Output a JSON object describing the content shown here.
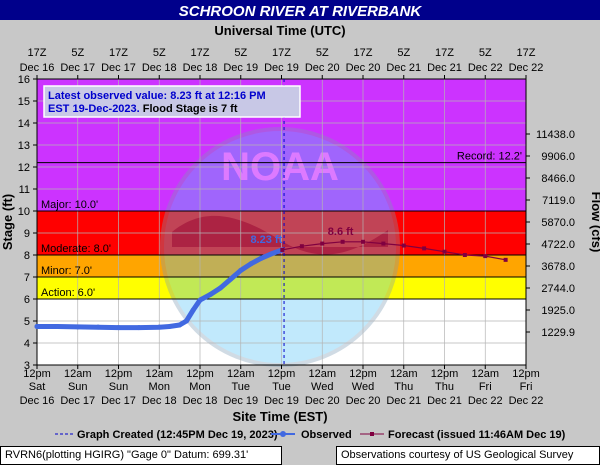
{
  "chart_data": {
    "type": "line",
    "title": "SCHROON RIVER AT RIVERBANK",
    "top_axis_title": "Universal Time (UTC)",
    "xlabel": "Site Time (EST)",
    "ylabel": "Stage (ft)",
    "y2label": "Flow (cfs)",
    "ylim": [
      3,
      16
    ],
    "xlim_hours": [
      0,
      144
    ],
    "y_ticks": [
      "3",
      "4",
      "5",
      "6",
      "7",
      "8",
      "9",
      "10",
      "11",
      "12",
      "13",
      "14",
      "15",
      "16"
    ],
    "flow_ticks": [
      {
        "stage": 4.5,
        "label": "1229.9"
      },
      {
        "stage": 5.5,
        "label": "1925.0"
      },
      {
        "stage": 6.5,
        "label": "2744.0"
      },
      {
        "stage": 7.5,
        "label": "3678.0"
      },
      {
        "stage": 8.5,
        "label": "4722.0"
      },
      {
        "stage": 9.5,
        "label": "5870.0"
      },
      {
        "stage": 10.5,
        "label": "7119.0"
      },
      {
        "stage": 11.5,
        "label": "8466.0"
      },
      {
        "stage": 12.5,
        "label": "9906.0"
      },
      {
        "stage": 13.5,
        "label": "11438.0"
      }
    ],
    "bottom_ticks": [
      {
        "h": 0,
        "l1": "12pm",
        "l2": "Sat",
        "l3": "Dec 16"
      },
      {
        "h": 12,
        "l1": "12am",
        "l2": "Sun",
        "l3": "Dec 17"
      },
      {
        "h": 24,
        "l1": "12pm",
        "l2": "Sun",
        "l3": "Dec 17"
      },
      {
        "h": 36,
        "l1": "12am",
        "l2": "Mon",
        "l3": "Dec 18"
      },
      {
        "h": 48,
        "l1": "12pm",
        "l2": "Mon",
        "l3": "Dec 18"
      },
      {
        "h": 60,
        "l1": "12am",
        "l2": "Tue",
        "l3": "Dec 19"
      },
      {
        "h": 72,
        "l1": "12pm",
        "l2": "Tue",
        "l3": "Dec 19"
      },
      {
        "h": 84,
        "l1": "12am",
        "l2": "Wed",
        "l3": "Dec 20"
      },
      {
        "h": 96,
        "l1": "12pm",
        "l2": "Wed",
        "l3": "Dec 20"
      },
      {
        "h": 108,
        "l1": "12am",
        "l2": "Thu",
        "l3": "Dec 21"
      },
      {
        "h": 120,
        "l1": "12pm",
        "l2": "Thu",
        "l3": "Dec 21"
      },
      {
        "h": 132,
        "l1": "12am",
        "l2": "Fri",
        "l3": "Dec 22"
      },
      {
        "h": 144,
        "l1": "12pm",
        "l2": "Fri",
        "l3": "Dec 22"
      }
    ],
    "top_ticks": [
      {
        "h": 0,
        "l1": "17Z",
        "l2": "Dec 16"
      },
      {
        "h": 12,
        "l1": "5Z",
        "l2": "Dec 17"
      },
      {
        "h": 24,
        "l1": "17Z",
        "l2": "Dec 17"
      },
      {
        "h": 36,
        "l1": "5Z",
        "l2": "Dec 18"
      },
      {
        "h": 48,
        "l1": "17Z",
        "l2": "Dec 18"
      },
      {
        "h": 60,
        "l1": "5Z",
        "l2": "Dec 19"
      },
      {
        "h": 72,
        "l1": "17Z",
        "l2": "Dec 19"
      },
      {
        "h": 84,
        "l1": "5Z",
        "l2": "Dec 20"
      },
      {
        "h": 96,
        "l1": "17Z",
        "l2": "Dec 20"
      },
      {
        "h": 108,
        "l1": "5Z",
        "l2": "Dec 21"
      },
      {
        "h": 120,
        "l1": "17Z",
        "l2": "Dec 21"
      },
      {
        "h": 132,
        "l1": "5Z",
        "l2": "Dec 22"
      },
      {
        "h": 144,
        "l1": "17Z",
        "l2": "Dec 22"
      }
    ],
    "bands": [
      {
        "from": 3,
        "to": 6,
        "color": "#ffffff"
      },
      {
        "from": 6,
        "to": 7,
        "color": "#ffff00"
      },
      {
        "from": 7,
        "to": 8,
        "color": "#ffa500"
      },
      {
        "from": 8,
        "to": 10,
        "color": "#ff0000"
      },
      {
        "from": 10,
        "to": 16,
        "color": "#cc33ff"
      }
    ],
    "thresholds": [
      {
        "name": "Action",
        "stage": 6.0,
        "label": "Action: 6.0'"
      },
      {
        "name": "Minor",
        "stage": 7.0,
        "label": "Minor: 7.0'"
      },
      {
        "name": "Moderate",
        "stage": 8.0,
        "label": "Moderate: 8.0'"
      },
      {
        "name": "Major",
        "stage": 10.0,
        "label": "Major: 10.0'"
      },
      {
        "name": "Record",
        "stage": 12.2,
        "label": "Record: 12.2'"
      }
    ],
    "graph_created_hour": 72.75,
    "series": [
      {
        "name": "Observed",
        "color": "#4169e1",
        "points": [
          [
            0,
            4.75
          ],
          [
            6,
            4.75
          ],
          [
            12,
            4.73
          ],
          [
            18,
            4.72
          ],
          [
            24,
            4.7
          ],
          [
            30,
            4.7
          ],
          [
            36,
            4.72
          ],
          [
            39,
            4.75
          ],
          [
            42,
            4.82
          ],
          [
            44,
            5.0
          ],
          [
            46,
            5.5
          ],
          [
            48,
            5.95
          ],
          [
            51,
            6.2
          ],
          [
            54,
            6.5
          ],
          [
            57,
            6.9
          ],
          [
            60,
            7.3
          ],
          [
            63,
            7.6
          ],
          [
            66,
            7.85
          ],
          [
            69,
            8.05
          ],
          [
            72.25,
            8.23
          ]
        ]
      },
      {
        "name": "Forecast",
        "color": "#800040",
        "points": [
          [
            72.25,
            8.23
          ],
          [
            78,
            8.4
          ],
          [
            84,
            8.52
          ],
          [
            90,
            8.6
          ],
          [
            96,
            8.6
          ],
          [
            102,
            8.52
          ],
          [
            108,
            8.43
          ],
          [
            114,
            8.3
          ],
          [
            120,
            8.15
          ],
          [
            126,
            8.0
          ],
          [
            132,
            7.95
          ],
          [
            138,
            7.78
          ]
        ]
      }
    ],
    "annotations": {
      "observed_label": "8.23 ft",
      "observed_label_at": [
        72.25,
        8.23
      ],
      "forecast_label": "8.6 ft",
      "forecast_label_at": [
        90,
        8.6
      ]
    },
    "info_box": {
      "line1": "Latest observed value: 8.23 ft at 12:16 PM",
      "line2_a": "EST 19-Dec-2023.",
      "line2_b": " Flood Stage is 7 ft"
    },
    "legend": [
      {
        "type": "dashed",
        "label": "Graph Created (12:45PM Dec 19, 2023)"
      },
      {
        "type": "observed",
        "label": "Observed"
      },
      {
        "type": "forecast",
        "label": "Forecast (issued 11:46AM Dec 19)"
      }
    ],
    "colors": {
      "background": "#c8c8c8",
      "title_bar": "#00008b",
      "grid": "#b4b4b4"
    }
  },
  "footer": {
    "left": "RVRN6(plotting HGIRG) \"Gage 0\" Datum: 699.31'",
    "right": "Observations courtesy of US Geological Survey"
  }
}
